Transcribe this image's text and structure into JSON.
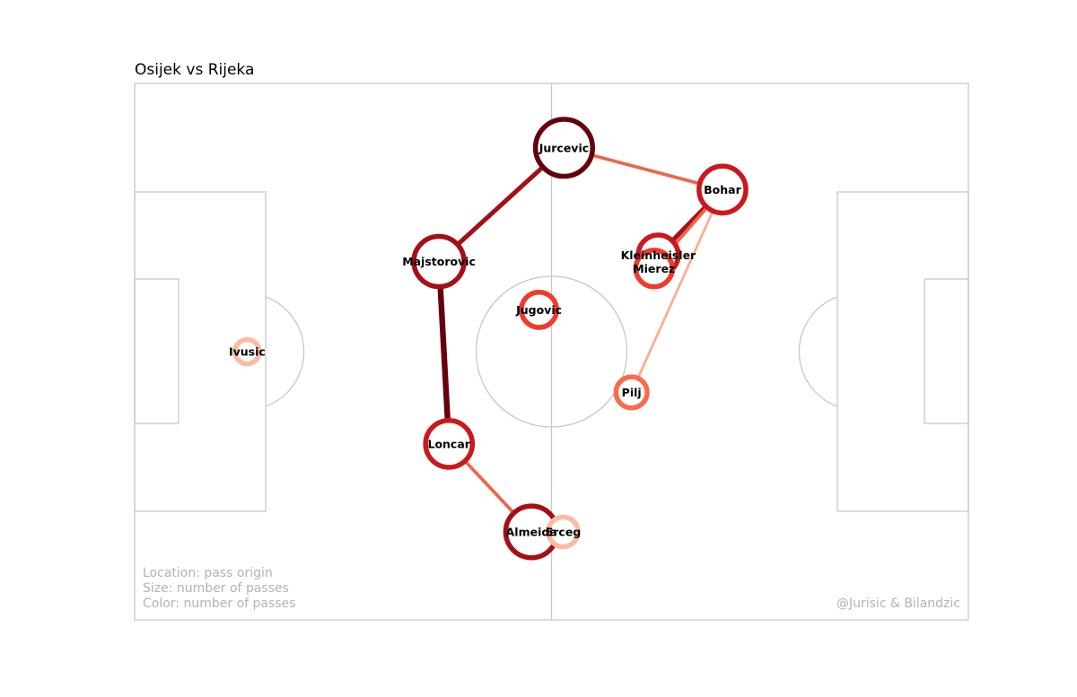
{
  "chart_data": {
    "type": "pass-network",
    "title": "Osijek vs Rijeka",
    "legend": [
      "Location: pass origin",
      "Size: number of passes",
      "Color: number of passes"
    ],
    "credit": "@Jurisic & Bilandzic",
    "players": [
      {
        "name": "Jurcevic",
        "x": 51.5,
        "y": 12.0,
        "passes": 60,
        "color": "#67000d"
      },
      {
        "name": "Bohar",
        "x": 70.5,
        "y": 19.8,
        "passes": 45,
        "color": "#cb181d"
      },
      {
        "name": "Majstorovic",
        "x": 36.5,
        "y": 33.2,
        "passes": 50,
        "color": "#a50f15"
      },
      {
        "name": "Kleinheisler",
        "x": 62.8,
        "y": 32.0,
        "passes": 35,
        "color": "#cb181d"
      },
      {
        "name": "Mierez",
        "x": 62.3,
        "y": 34.5,
        "passes": 30,
        "color": "#ef3b2c"
      },
      {
        "name": "Jugovic",
        "x": 48.5,
        "y": 42.2,
        "passes": 28,
        "color": "#ef3b2c"
      },
      {
        "name": "Ivusic",
        "x": 13.5,
        "y": 50.0,
        "passes": 12,
        "color": "#fcbba1"
      },
      {
        "name": "Pilj",
        "x": 59.6,
        "y": 57.6,
        "passes": 22,
        "color": "#fb6a4a"
      },
      {
        "name": "Loncar",
        "x": 37.7,
        "y": 67.2,
        "passes": 45,
        "color": "#cb181d"
      },
      {
        "name": "Almeida",
        "x": 47.6,
        "y": 83.6,
        "passes": 52,
        "color": "#a50f15"
      },
      {
        "name": "Erceg",
        "x": 51.4,
        "y": 83.6,
        "passes": 20,
        "color": "#fcbba1"
      }
    ],
    "edges": [
      {
        "from": "Jurcevic",
        "to": "Majstorovic",
        "passes": 9,
        "color": "#a50f15"
      },
      {
        "from": "Jurcevic",
        "to": "Bohar",
        "passes": 6,
        "color": "#ef6548"
      },
      {
        "from": "Bohar",
        "to": "Kleinheisler",
        "passes": 9,
        "color": "#a50f15"
      },
      {
        "from": "Bohar",
        "to": "Mierez",
        "passes": 6,
        "color": "#ef6548"
      },
      {
        "from": "Bohar",
        "to": "Pilj",
        "passes": 4,
        "color": "#fcae91"
      },
      {
        "from": "Majstorovic",
        "to": "Loncar",
        "passes": 12,
        "color": "#67000d"
      },
      {
        "from": "Loncar",
        "to": "Almeida",
        "passes": 6,
        "color": "#ef6548"
      }
    ]
  }
}
